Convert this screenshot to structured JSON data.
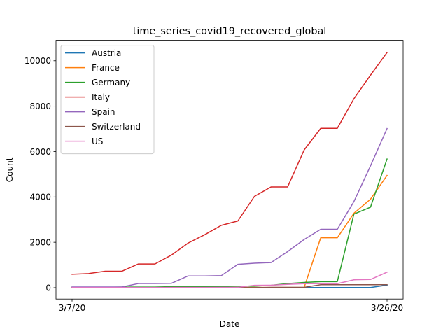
{
  "chart_data": {
    "type": "line",
    "title": "time_series_covid19_recovered_global",
    "xlabel": "Date",
    "ylabel": "Count",
    "x": [
      "3/7/20",
      "3/8/20",
      "3/9/20",
      "3/10/20",
      "3/11/20",
      "3/12/20",
      "3/13/20",
      "3/14/20",
      "3/15/20",
      "3/16/20",
      "3/17/20",
      "3/18/20",
      "3/19/20",
      "3/20/20",
      "3/21/20",
      "3/22/20",
      "3/23/20",
      "3/24/20",
      "3/25/20",
      "3/26/20"
    ],
    "xticks": [
      "3/7/20",
      "3/26/20"
    ],
    "yticks": [
      0,
      2000,
      4000,
      6000,
      8000,
      10000
    ],
    "ylim": [
      -500,
      10900
    ],
    "legend_position": "upper-left",
    "grid": false,
    "series": [
      {
        "name": "Austria",
        "color": "#1f77b4",
        "values": [
          0,
          2,
          4,
          4,
          4,
          6,
          6,
          6,
          6,
          6,
          9,
          9,
          9,
          9,
          9,
          9,
          9,
          9,
          9,
          112
        ]
      },
      {
        "name": "France",
        "color": "#ff7f0e",
        "values": [
          12,
          12,
          12,
          12,
          12,
          12,
          12,
          12,
          12,
          12,
          12,
          12,
          12,
          12,
          12,
          2200,
          2200,
          3281,
          3900,
          4948
        ]
      },
      {
        "name": "Germany",
        "color": "#2ca02c",
        "values": [
          18,
          18,
          18,
          25,
          25,
          25,
          46,
          46,
          46,
          46,
          67,
          67,
          105,
          180,
          233,
          266,
          266,
          3243,
          3547,
          5673
        ]
      },
      {
        "name": "Italy",
        "color": "#d62728",
        "values": [
          589,
          622,
          724,
          724,
          1045,
          1045,
          1439,
          1966,
          2335,
          2749,
          2941,
          4025,
          4440,
          4440,
          6072,
          7024,
          7024,
          8326,
          9362,
          10361
        ]
      },
      {
        "name": "Spain",
        "color": "#9467bd",
        "values": [
          30,
          30,
          30,
          30,
          183,
          183,
          193,
          517,
          517,
          530,
          1028,
          1081,
          1107,
          1588,
          2125,
          2575,
          2575,
          3794,
          5367,
          7015
        ]
      },
      {
        "name": "Switzerland",
        "color": "#8c564b",
        "values": [
          3,
          3,
          3,
          3,
          3,
          4,
          4,
          4,
          4,
          4,
          4,
          4,
          15,
          15,
          15,
          131,
          131,
          131,
          131,
          131
        ]
      },
      {
        "name": "US",
        "color": "#e377c2",
        "values": [
          8,
          8,
          8,
          8,
          8,
          8,
          12,
          12,
          12,
          17,
          17,
          105,
          108,
          147,
          176,
          178,
          178,
          348,
          361,
          681
        ]
      }
    ]
  }
}
